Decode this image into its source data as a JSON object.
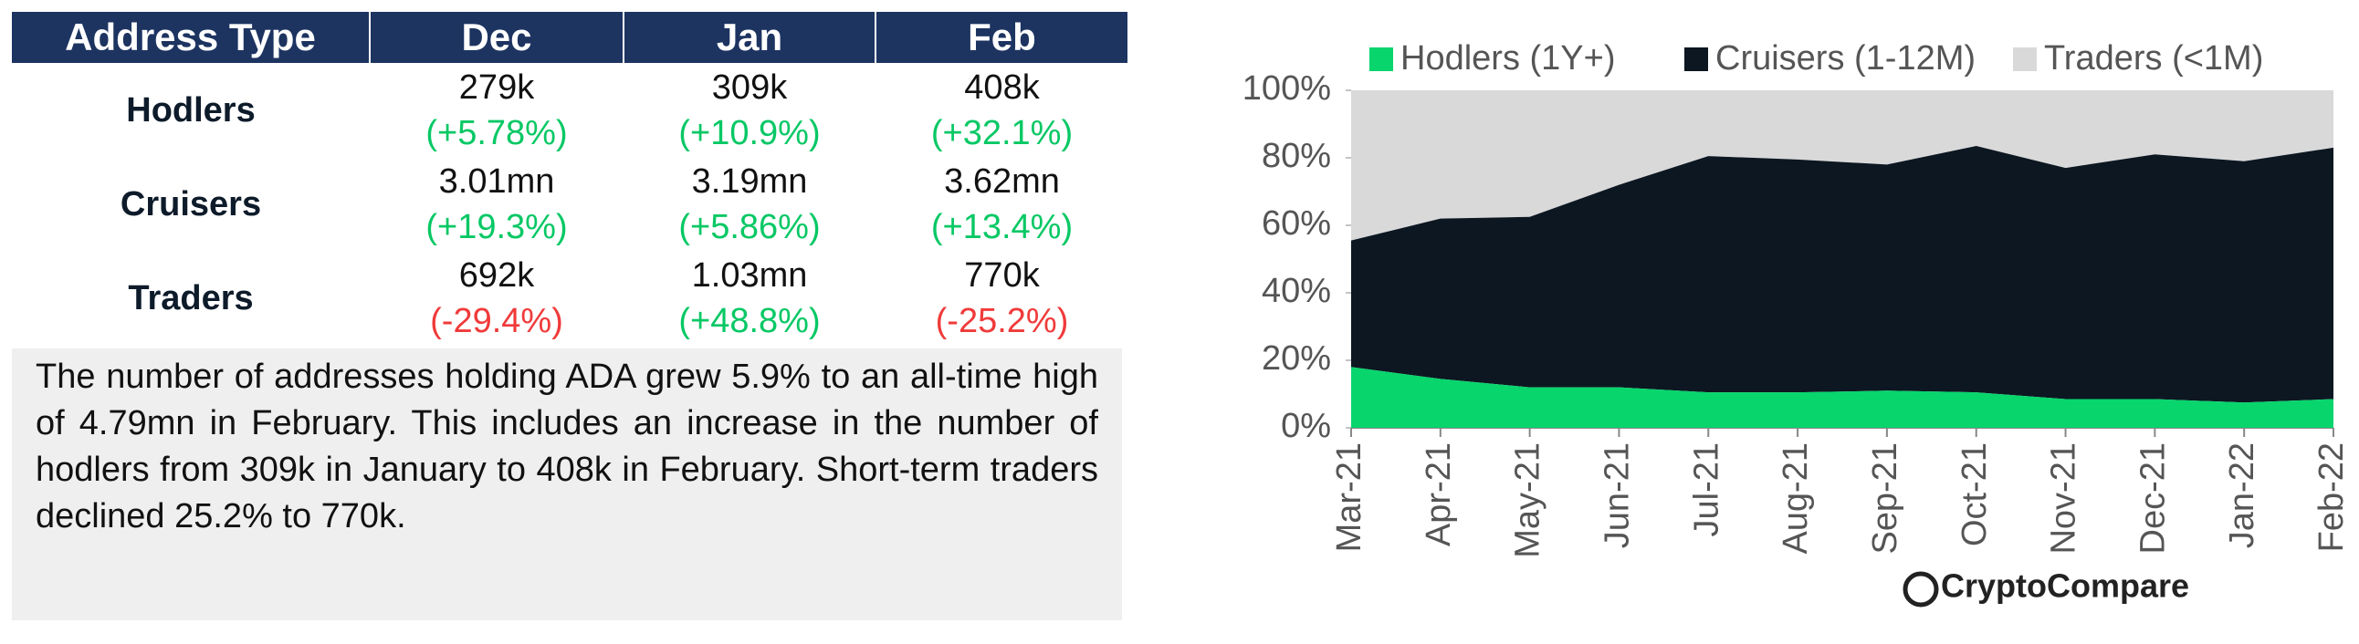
{
  "table": {
    "header": [
      "Address Type",
      "Dec",
      "Jan",
      "Feb"
    ],
    "rows": [
      {
        "label": "Hodlers",
        "values": [
          "279k",
          "309k",
          "408k"
        ],
        "changes": [
          "(+5.78%)",
          "(+10.9%)",
          "(+32.1%)"
        ]
      },
      {
        "label": "Cruisers",
        "values": [
          "3.01mn",
          "3.19mn",
          "3.62mn"
        ],
        "changes": [
          "(+19.3%)",
          "(+5.86%)",
          "(+13.4%)"
        ]
      },
      {
        "label": "Traders",
        "values": [
          "692k",
          "1.03mn",
          "770k"
        ],
        "changes": [
          "(-29.4%)",
          "(+48.8%)",
          "(-25.2%)"
        ]
      }
    ]
  },
  "text": "The number of addresses holding ADA grew 5.9% to an all-time high of 4.79mn in February. This includes an increase in the number of hodlers from 309k in January to 408k in February. Short-term traders declined 25.2% to 770k.",
  "logo": "CryptoCompare",
  "chart_data": {
    "type": "stacked_area",
    "categories": [
      "Mar-21",
      "Apr-21",
      "May-21",
      "Jun-21",
      "Jul-21",
      "Aug-21",
      "Sep-21",
      "Oct-21",
      "Nov-21",
      "Dec-21",
      "Jan-22",
      "Feb-22"
    ],
    "series": [
      {
        "name": "Hodlers (1Y+)",
        "color": "#08d56c",
        "values": [
          18,
          14.5,
          12,
          12,
          10.5,
          10.5,
          11,
          10.5,
          8.5,
          8.5,
          7.5,
          8.5
        ]
      },
      {
        "name": "Cruisers (1-12M)",
        "color": "#0c1722",
        "values": [
          37.5,
          47.5,
          50.5,
          60,
          70,
          69,
          67,
          73,
          68.5,
          72.5,
          71.5,
          74.5
        ]
      },
      {
        "name": "Traders (<1M)",
        "color": "#d9d9d9",
        "values": [
          44.5,
          38,
          37.5,
          28,
          19.5,
          20.5,
          22,
          16.5,
          23,
          19,
          21,
          17
        ]
      }
    ],
    "ylim": [
      0,
      100
    ],
    "yticks": [
      {
        "value": 0,
        "label": "0%"
      },
      {
        "value": 20,
        "label": "20%"
      },
      {
        "value": 40,
        "label": "40%"
      },
      {
        "value": 60,
        "label": "60%"
      },
      {
        "value": 80,
        "label": "80%"
      },
      {
        "value": 100,
        "label": "100%"
      }
    ],
    "legend": "top"
  }
}
